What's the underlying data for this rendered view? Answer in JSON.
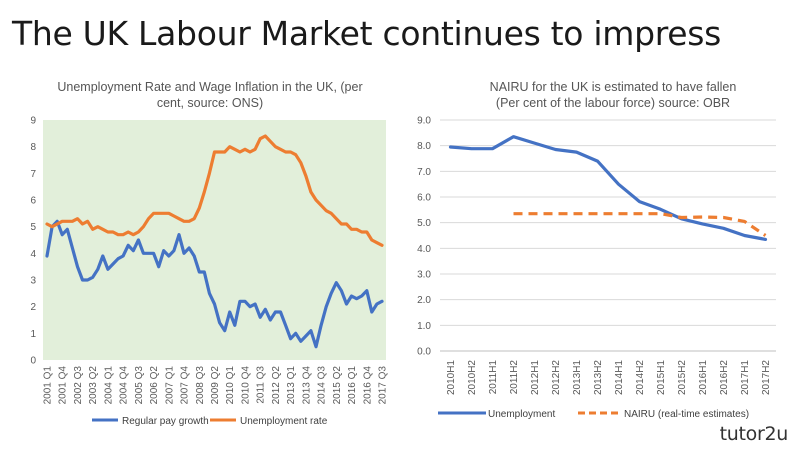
{
  "slide": {
    "title": "The UK Labour Market continues to impress"
  },
  "brand": {
    "logo_text": "tutor2u"
  },
  "colors": {
    "blue": "#4472c4",
    "orange": "#ed7d31",
    "plot_bg": "#e2efda",
    "grid": "#d9d9d9"
  },
  "chart_data": [
    {
      "type": "line",
      "title": "Unemployment Rate and Wage Inflation in the UK, (per cent, source: ONS)",
      "title_lines": [
        "Unemployment Rate and Wage Inflation in the UK, (per",
        "cent, source: ONS)"
      ],
      "xlabel": "",
      "ylabel": "",
      "ylim": [
        0,
        9
      ],
      "yticks": [
        0,
        1,
        2,
        3,
        4,
        5,
        6,
        7,
        8,
        9
      ],
      "x_start": "2001 Q1",
      "x_end": "2017 Q3",
      "x_tick_labels": [
        "2001 Q1",
        "2001 Q4",
        "2002 Q3",
        "2003 Q2",
        "2004 Q1",
        "2004 Q4",
        "2005 Q3",
        "2006 Q2",
        "2007 Q1",
        "2007 Q4",
        "2008 Q3",
        "2009 Q2",
        "2010 Q1",
        "2010 Q4",
        "2011 Q3",
        "2012 Q2",
        "2013 Q1",
        "2013 Q4",
        "2014 Q3",
        "2015 Q2",
        "2016 Q1",
        "2016 Q4",
        "2017 Q3"
      ],
      "background": "#e2efda",
      "grid": false,
      "legend_position": "bottom",
      "series": [
        {
          "name": "Regular pay growth",
          "color": "#4472c4",
          "values": [
            3.9,
            5.0,
            5.2,
            4.7,
            4.9,
            4.2,
            3.5,
            3.0,
            3.0,
            3.1,
            3.4,
            3.9,
            3.4,
            3.6,
            3.8,
            3.9,
            4.3,
            4.1,
            4.5,
            4.0,
            4.0,
            4.0,
            3.5,
            4.1,
            3.9,
            4.1,
            4.7,
            4.0,
            4.2,
            3.9,
            3.3,
            3.3,
            2.5,
            2.1,
            1.4,
            1.1,
            1.8,
            1.3,
            2.2,
            2.2,
            2.0,
            2.1,
            1.6,
            1.9,
            1.5,
            1.8,
            1.8,
            1.3,
            0.8,
            1.0,
            0.7,
            0.9,
            1.1,
            0.5,
            1.3,
            2.0,
            2.5,
            2.9,
            2.6,
            2.1,
            2.4,
            2.3,
            2.4,
            2.6,
            1.8,
            2.1,
            2.2
          ]
        },
        {
          "name": "Unemployment rate",
          "color": "#ed7d31",
          "values": [
            5.1,
            5.0,
            5.1,
            5.2,
            5.2,
            5.2,
            5.3,
            5.1,
            5.2,
            4.9,
            5.0,
            4.9,
            4.8,
            4.8,
            4.7,
            4.7,
            4.8,
            4.7,
            4.8,
            5.0,
            5.3,
            5.5,
            5.5,
            5.5,
            5.5,
            5.4,
            5.3,
            5.2,
            5.2,
            5.3,
            5.7,
            6.3,
            7.0,
            7.8,
            7.8,
            7.8,
            8.0,
            7.9,
            7.8,
            7.9,
            7.8,
            7.9,
            8.3,
            8.4,
            8.2,
            8.0,
            7.9,
            7.8,
            7.8,
            7.7,
            7.4,
            6.9,
            6.3,
            6.0,
            5.8,
            5.6,
            5.5,
            5.3,
            5.1,
            5.1,
            4.9,
            4.9,
            4.8,
            4.8,
            4.5,
            4.4,
            4.3
          ]
        }
      ]
    },
    {
      "type": "line",
      "title": "NAIRU for the UK is estimated to have fallen (Per cent of the labour force) source: OBR",
      "title_lines": [
        "NAIRU for the UK is estimated to have fallen",
        "(Per cent of the labour force) source: OBR"
      ],
      "xlabel": "",
      "ylabel": "",
      "ylim": [
        0,
        9
      ],
      "yticks": [
        "0.0",
        "1.0",
        "2.0",
        "3.0",
        "4.0",
        "5.0",
        "6.0",
        "7.0",
        "8.0",
        "9.0"
      ],
      "categories": [
        "2010H1",
        "2010H2",
        "2011H1",
        "2011H2",
        "2012H1",
        "2012H2",
        "2013H1",
        "2013H2",
        "2014H1",
        "2014H2",
        "2015H1",
        "2015H2",
        "2016H1",
        "2016H2",
        "2017H1",
        "2017H2"
      ],
      "grid": true,
      "legend_position": "bottom",
      "series": [
        {
          "name": "Unemployment",
          "color": "#4472c4",
          "dash": false,
          "values": [
            7.95,
            7.88,
            7.88,
            8.35,
            8.1,
            7.85,
            7.75,
            7.4,
            6.5,
            5.82,
            5.52,
            5.15,
            4.95,
            4.78,
            4.5,
            4.35
          ]
        },
        {
          "name": "NAIRU (real-time estimates)",
          "color": "#ed7d31",
          "dash": true,
          "values": [
            null,
            null,
            null,
            5.35,
            5.35,
            5.35,
            5.35,
            5.35,
            5.35,
            5.35,
            5.35,
            5.2,
            5.22,
            5.2,
            5.05,
            4.5
          ]
        }
      ]
    }
  ]
}
